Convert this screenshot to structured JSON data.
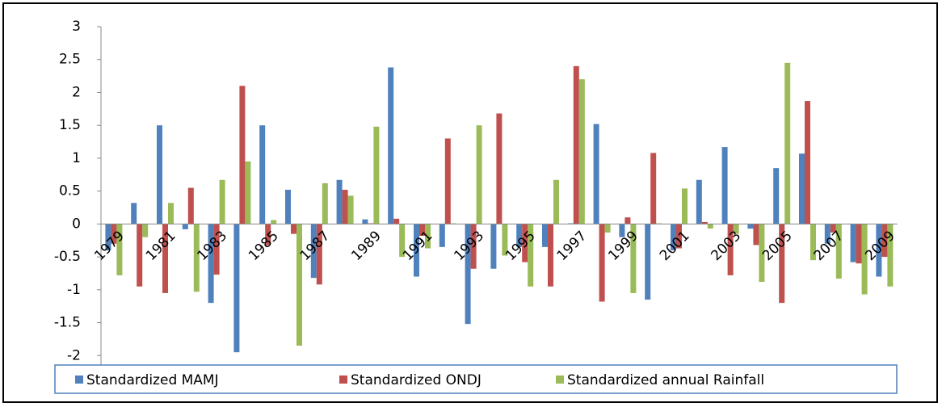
{
  "chart_data": {
    "type": "bar",
    "categories": [
      "1979",
      null,
      "1981",
      null,
      "1983",
      null,
      "1985",
      null,
      "1987",
      null,
      "1989",
      null,
      "1991",
      null,
      "1993",
      null,
      "1995",
      null,
      "1997",
      null,
      "1999",
      null,
      "2001",
      null,
      "2003",
      null,
      "2005",
      null,
      "2007",
      null,
      "2009"
    ],
    "series": [
      {
        "name": "Standardized MAMJ",
        "color": "#4f81bd",
        "values": [
          -0.4,
          0.32,
          1.5,
          -0.08,
          -1.2,
          -1.95,
          1.5,
          0.52,
          -0.82,
          0.67,
          0.07,
          2.38,
          -0.8,
          -0.35,
          -1.52,
          -0.68,
          -0.35,
          -0.35,
          0.01,
          1.52,
          -0.2,
          -1.15,
          -0.4,
          0.67,
          1.17,
          -0.07,
          0.85,
          1.07,
          -0.3,
          -0.58,
          -0.8
        ]
      },
      {
        "name": "Standardized ONDJ",
        "color": "#c0504d",
        "values": [
          -0.3,
          -0.95,
          -1.05,
          0.55,
          -0.77,
          2.1,
          -0.32,
          -0.15,
          -0.92,
          0.52,
          0.01,
          0.08,
          -0.18,
          1.3,
          -0.68,
          1.68,
          -0.58,
          -0.95,
          2.4,
          -1.18,
          0.1,
          1.08,
          -0.37,
          0.03,
          -0.78,
          -0.32,
          -1.2,
          1.87,
          -0.13,
          -0.6,
          -0.5
        ]
      },
      {
        "name": "Standardized annual Rainfall",
        "color": "#9bbb59",
        "values": [
          -0.78,
          -0.2,
          0.32,
          -1.03,
          0.67,
          0.95,
          0.06,
          -1.85,
          0.62,
          0.43,
          1.48,
          -0.5,
          -0.37,
          0.01,
          1.5,
          -0.48,
          -0.95,
          0.67,
          2.2,
          -0.13,
          -1.05,
          0.01,
          0.54,
          -0.07,
          -0.15,
          -0.88,
          2.45,
          -0.55,
          -0.83,
          -1.07,
          -0.95
        ]
      }
    ],
    "ylim": [
      -2.5,
      3
    ],
    "yticks": [
      -2.5,
      -2,
      -1.5,
      -1,
      -0.5,
      0,
      0.5,
      1,
      1.5,
      2,
      2.5,
      3
    ],
    "legend": "bottom"
  }
}
